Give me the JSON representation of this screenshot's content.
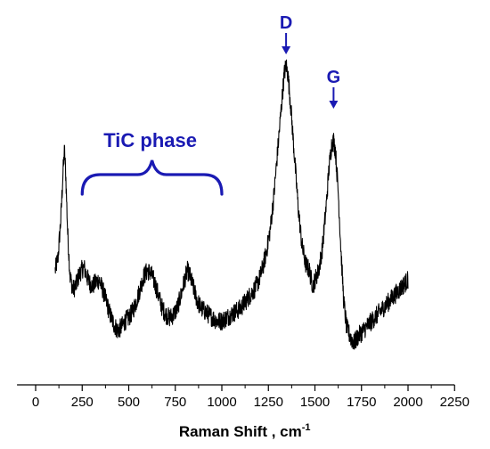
{
  "chart_data": {
    "type": "line",
    "xlabel": "Raman Shift , cm",
    "xlabel_superscript": "-1",
    "xlim": [
      -100,
      2250
    ],
    "x_ticks": [
      0,
      250,
      500,
      750,
      1000,
      1250,
      1500,
      1750,
      2000,
      2250
    ],
    "y_axis_visible": false,
    "grid": false,
    "series": [
      {
        "color": "#000000",
        "points": [
          [
            105,
            0.3
          ],
          [
            120,
            0.34
          ],
          [
            135,
            0.46
          ],
          [
            148,
            0.62
          ],
          [
            155,
            0.68
          ],
          [
            162,
            0.6
          ],
          [
            172,
            0.42
          ],
          [
            185,
            0.28
          ],
          [
            200,
            0.24
          ],
          [
            215,
            0.25
          ],
          [
            230,
            0.28
          ],
          [
            245,
            0.3
          ],
          [
            260,
            0.31
          ],
          [
            275,
            0.28
          ],
          [
            290,
            0.26
          ],
          [
            305,
            0.25
          ],
          [
            320,
            0.26
          ],
          [
            340,
            0.27
          ],
          [
            360,
            0.24
          ],
          [
            380,
            0.2
          ],
          [
            400,
            0.16
          ],
          [
            420,
            0.13
          ],
          [
            440,
            0.11
          ],
          [
            460,
            0.12
          ],
          [
            480,
            0.14
          ],
          [
            500,
            0.15
          ],
          [
            520,
            0.17
          ],
          [
            540,
            0.2
          ],
          [
            560,
            0.24
          ],
          [
            580,
            0.28
          ],
          [
            600,
            0.3
          ],
          [
            620,
            0.29
          ],
          [
            640,
            0.26
          ],
          [
            660,
            0.22
          ],
          [
            680,
            0.18
          ],
          [
            700,
            0.16
          ],
          [
            720,
            0.15
          ],
          [
            740,
            0.16
          ],
          [
            760,
            0.18
          ],
          [
            780,
            0.22
          ],
          [
            800,
            0.27
          ],
          [
            815,
            0.3
          ],
          [
            830,
            0.28
          ],
          [
            850,
            0.24
          ],
          [
            870,
            0.2
          ],
          [
            890,
            0.18
          ],
          [
            910,
            0.17
          ],
          [
            930,
            0.16
          ],
          [
            950,
            0.15
          ],
          [
            975,
            0.14
          ],
          [
            1000,
            0.14
          ],
          [
            1025,
            0.15
          ],
          [
            1050,
            0.16
          ],
          [
            1075,
            0.17
          ],
          [
            1100,
            0.18
          ],
          [
            1125,
            0.2
          ],
          [
            1150,
            0.22
          ],
          [
            1175,
            0.24
          ],
          [
            1200,
            0.27
          ],
          [
            1220,
            0.31
          ],
          [
            1240,
            0.36
          ],
          [
            1260,
            0.43
          ],
          [
            1280,
            0.54
          ],
          [
            1300,
            0.68
          ],
          [
            1320,
            0.82
          ],
          [
            1335,
            0.92
          ],
          [
            1345,
            0.95
          ],
          [
            1355,
            0.92
          ],
          [
            1370,
            0.82
          ],
          [
            1390,
            0.66
          ],
          [
            1410,
            0.5
          ],
          [
            1430,
            0.38
          ],
          [
            1450,
            0.32
          ],
          [
            1470,
            0.3
          ],
          [
            1480,
            0.27
          ],
          [
            1490,
            0.25
          ],
          [
            1500,
            0.27
          ],
          [
            1520,
            0.3
          ],
          [
            1540,
            0.37
          ],
          [
            1560,
            0.5
          ],
          [
            1575,
            0.62
          ],
          [
            1590,
            0.7
          ],
          [
            1600,
            0.71
          ],
          [
            1610,
            0.68
          ],
          [
            1625,
            0.55
          ],
          [
            1640,
            0.36
          ],
          [
            1655,
            0.2
          ],
          [
            1670,
            0.12
          ],
          [
            1690,
            0.09
          ],
          [
            1710,
            0.07
          ],
          [
            1730,
            0.09
          ],
          [
            1760,
            0.11
          ],
          [
            1790,
            0.13
          ],
          [
            1820,
            0.15
          ],
          [
            1850,
            0.17
          ],
          [
            1880,
            0.19
          ],
          [
            1910,
            0.21
          ],
          [
            1940,
            0.23
          ],
          [
            1970,
            0.25
          ],
          [
            2000,
            0.27
          ]
        ]
      }
    ],
    "annotations": [
      {
        "text": "D",
        "x": 1345,
        "color": "#1a1ab3",
        "type": "arrow"
      },
      {
        "text": "G",
        "x": 1600,
        "color": "#1a1ab3",
        "type": "arrow"
      },
      {
        "text": "TiC phase",
        "x_start": 250,
        "x_end": 1000,
        "color": "#1a1ab3",
        "type": "brace"
      }
    ]
  }
}
